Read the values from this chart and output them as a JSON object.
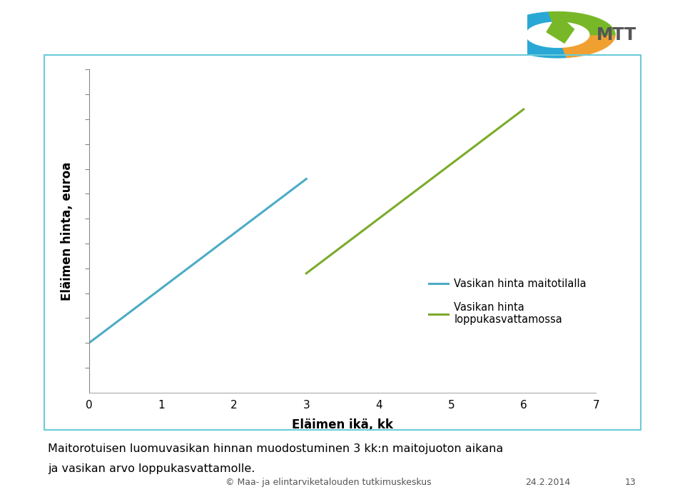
{
  "line1_x": [
    0,
    3
  ],
  "line1_y": [
    100,
    430
  ],
  "line1_color": "#4BACC6",
  "line1_label": "Vasikan hinta maitotilalla",
  "line2_x": [
    3,
    6
  ],
  "line2_y": [
    240,
    570
  ],
  "line2_color": "#7BAB2A",
  "line2_label": "Vasikan hinta\nloppukasvattamossa",
  "xlabel": "Eläimen ikä, kk",
  "ylabel": "Eläimen hinta, euroa",
  "xlim": [
    0,
    7
  ],
  "ylim": [
    0,
    650
  ],
  "xticks": [
    0,
    1,
    2,
    3,
    4,
    5,
    6,
    7
  ],
  "line_width": 2.2,
  "border_color": "#6BCBD8",
  "bg_color": "#FFFFFF",
  "caption_line1": "Maitorotuisen luomuvasikan hinnan muodostuminen 3 kk:n maitojuoton aikana",
  "caption_line2": "ja vasikan arvo loppukasvattamolle.",
  "footer_text": "© Maa- ja elintarviketalouden tutkimuskeskus",
  "footer_date": "24.2.2014",
  "footer_page": "13"
}
